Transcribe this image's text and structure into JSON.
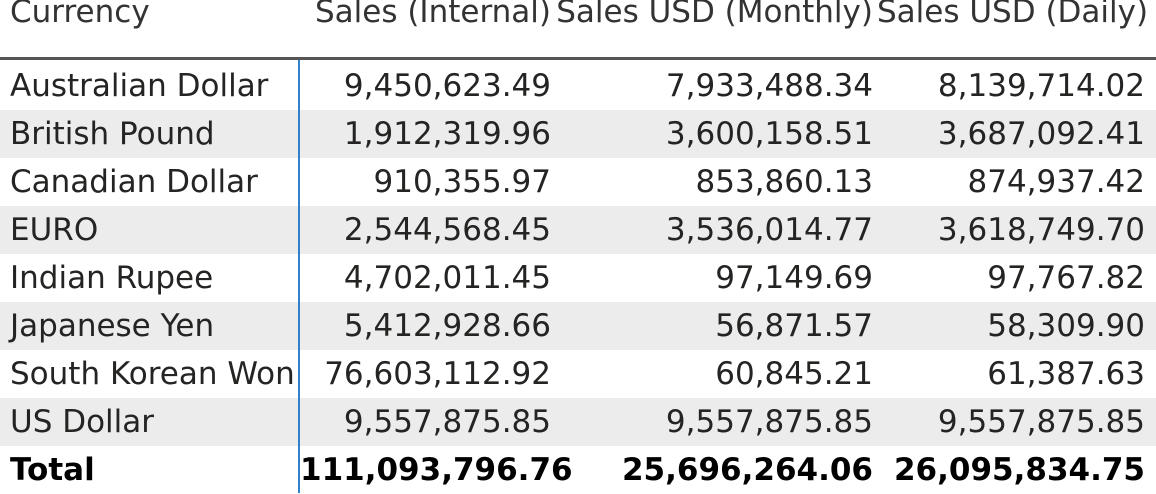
{
  "table": {
    "headers": [
      "Currency",
      "Sales (Internal)",
      "Sales USD (Monthly)",
      "Sales USD (Daily)"
    ],
    "rows": [
      [
        "Australian Dollar",
        "9,450,623.49",
        "7,933,488.34",
        "8,139,714.02"
      ],
      [
        "British Pound",
        "1,912,319.96",
        "3,600,158.51",
        "3,687,092.41"
      ],
      [
        "Canadian Dollar",
        "910,355.97",
        "853,860.13",
        "874,937.42"
      ],
      [
        "EURO",
        "2,544,568.45",
        "3,536,014.77",
        "3,618,749.70"
      ],
      [
        "Indian Rupee",
        "4,702,011.45",
        "97,149.69",
        "97,767.82"
      ],
      [
        "Japanese Yen",
        "5,412,928.66",
        "56,871.57",
        "58,309.90"
      ],
      [
        "South Korean Won",
        "76,603,112.92",
        "60,845.21",
        "61,387.63"
      ],
      [
        "US Dollar",
        "9,557,875.85",
        "9,557,875.85",
        "9,557,875.85"
      ]
    ],
    "total": [
      "Total",
      "111,093,796.76",
      "25,696,264.06",
      "26,095,834.75"
    ]
  },
  "colors": {
    "selection_line": "#2f82c9",
    "row_stripe": "#ececec",
    "header_rule": "#555555"
  }
}
